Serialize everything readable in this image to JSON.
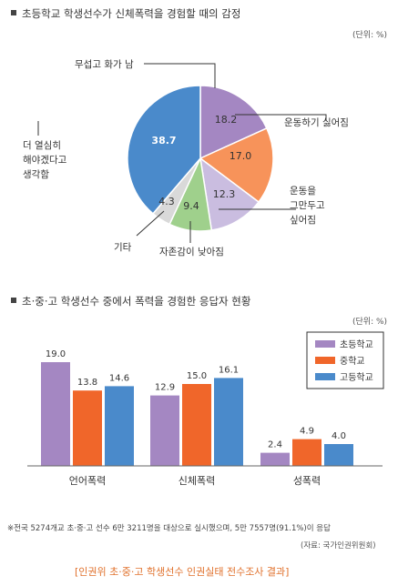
{
  "pie_section": {
    "title": "초등학교 학생선수가 신체폭력을 경험할 때의 감정",
    "unit": "(단위: %)"
  },
  "bar_section": {
    "title": "초·중·고 학생선수 중에서 폭력을 경험한 응답자 현황",
    "unit": "(단위: %)"
  },
  "note": "※전국 5274개교 초·중·고 선수 6만 3211명을 대상으로 실시했으며, 5만 7557명(91.1%)이 응답",
  "source": "(자료: 국가인권위원회)",
  "footer": "[인권위 초·중·고 학생선수 인권실태 전수조사 결과]",
  "chart_data": [
    {
      "type": "pie",
      "slices": [
        {
          "label": "무섭고 화가 남",
          "value": 18.2,
          "color": "#a487c2"
        },
        {
          "label": "운동하기 싫어짐",
          "value": 17.0,
          "color": "#f7935a"
        },
        {
          "label": "운동을 그만두고 싶어짐",
          "value": 12.3,
          "color": "#cabde0"
        },
        {
          "label": "자존감이 낮아짐",
          "value": 9.4,
          "color": "#9fd08c"
        },
        {
          "label": "기타",
          "value": 4.3,
          "color": "#d9d9d9"
        },
        {
          "label": "더 열심히 해야겠다고 생각함",
          "value": 38.7,
          "color": "#4a8acb"
        }
      ]
    },
    {
      "type": "bar",
      "categories": [
        "언어폭력",
        "신체폭력",
        "성폭력"
      ],
      "series": [
        {
          "name": "초등학교",
          "values": [
            19.0,
            12.9,
            2.4
          ],
          "color": "#a487c2"
        },
        {
          "name": "중학교",
          "values": [
            13.8,
            15.0,
            4.9
          ],
          "color": "#f0662a"
        },
        {
          "name": "고등학교",
          "values": [
            14.6,
            16.1,
            4.0
          ],
          "color": "#4a8acb"
        }
      ],
      "ylim": [
        0,
        20
      ],
      "legend_position": "top-right"
    }
  ]
}
